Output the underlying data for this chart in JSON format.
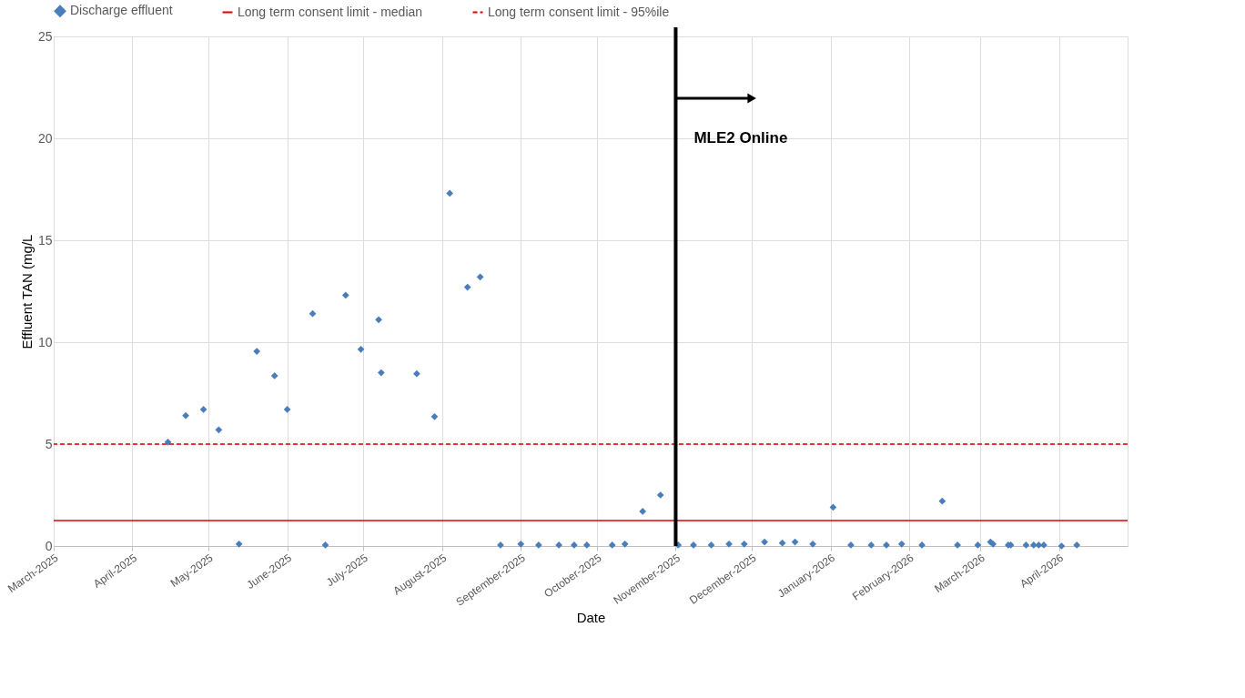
{
  "chart_data": {
    "type": "scatter",
    "xlabel": "Date",
    "ylabel": "Effluent TAN  (mg/L",
    "x": [
      "2025-04-15",
      "2025-04-22",
      "2025-04-29",
      "2025-05-05",
      "2025-05-13",
      "2025-05-20",
      "2025-05-27",
      "2025-06-01",
      "2025-06-11",
      "2025-06-16",
      "2025-06-24",
      "2025-06-30",
      "2025-07-07",
      "2025-07-08",
      "2025-07-22",
      "2025-07-29",
      "2025-08-04",
      "2025-08-11",
      "2025-08-16",
      "2025-08-24",
      "2025-09-01",
      "2025-09-08",
      "2025-09-16",
      "2025-09-22",
      "2025-09-27",
      "2025-10-07",
      "2025-10-12",
      "2025-10-19",
      "2025-10-26",
      "2025-11-02",
      "2025-11-08",
      "2025-11-15",
      "2025-11-22",
      "2025-11-28",
      "2025-12-06",
      "2025-12-13",
      "2025-12-18",
      "2025-12-25",
      "2026-01-02",
      "2026-01-09",
      "2026-01-17",
      "2026-01-23",
      "2026-01-29",
      "2026-02-06",
      "2026-02-14",
      "2026-02-20",
      "2026-02-28",
      "2026-03-05",
      "2026-03-06",
      "2026-03-12",
      "2026-03-13",
      "2026-03-19",
      "2026-03-22",
      "2026-03-24",
      "2026-03-26",
      "2026-04-02",
      "2026-04-08"
    ],
    "series": [
      {
        "name": "Discharge effluent",
        "color": "#4a7ebb",
        "values": [
          5.1,
          6.4,
          6.7,
          5.7,
          0.1,
          9.55,
          8.35,
          6.7,
          11.4,
          0.05,
          12.3,
          9.65,
          11.1,
          8.5,
          8.45,
          6.35,
          17.3,
          12.7,
          13.2,
          0.05,
          0.1,
          0.05,
          0.05,
          0.05,
          0.05,
          0.05,
          0.1,
          1.7,
          2.5,
          0.05,
          0.05,
          0.05,
          0.1,
          0.1,
          0.2,
          0.15,
          0.2,
          0.1,
          1.9,
          0.05,
          0.05,
          0.05,
          0.1,
          0.05,
          2.2,
          0.05,
          0.05,
          0.2,
          0.1,
          0.05,
          0.05,
          0.05,
          0.05,
          0.05,
          0.05,
          0.0,
          0.05
        ]
      }
    ],
    "marker": "diamond",
    "ref_lines": [
      {
        "axis": "y",
        "value": 1.25,
        "label": "Long term consent limit - median",
        "color": "#e00000",
        "line_style": "solid"
      },
      {
        "axis": "y",
        "value": 5,
        "label": "Long term consent limit - 95%ile",
        "color": "#e00000",
        "line_style": "dashed"
      },
      {
        "axis": "x",
        "value": "2025-11-01",
        "label": "MLE2 Online",
        "color": "#000000",
        "line_style": "solid"
      }
    ],
    "xlim": [
      "2025-03-01",
      "2026-04-28"
    ],
    "xticks": [
      {
        "value": "2025-03-01",
        "label": "March-2025"
      },
      {
        "value": "2025-04-01",
        "label": "April-2025"
      },
      {
        "value": "2025-05-01",
        "label": "May-2025"
      },
      {
        "value": "2025-06-01",
        "label": "June-2025"
      },
      {
        "value": "2025-07-01",
        "label": "July-2025"
      },
      {
        "value": "2025-08-01",
        "label": "August-2025"
      },
      {
        "value": "2025-09-01",
        "label": "September-2025"
      },
      {
        "value": "2025-10-01",
        "label": "October-2025"
      },
      {
        "value": "2025-11-01",
        "label": "November-2025"
      },
      {
        "value": "2025-12-01",
        "label": "December-2025"
      },
      {
        "value": "2026-01-01",
        "label": "January-2026"
      },
      {
        "value": "2026-02-01",
        "label": "February-2026"
      },
      {
        "value": "2026-03-01",
        "label": "March-2026"
      },
      {
        "value": "2026-04-01",
        "label": "April-2026"
      }
    ],
    "ylim": [
      0,
      25
    ],
    "yticks": [
      0,
      5,
      10,
      15,
      20,
      25
    ],
    "grid": true,
    "legend": "top"
  }
}
